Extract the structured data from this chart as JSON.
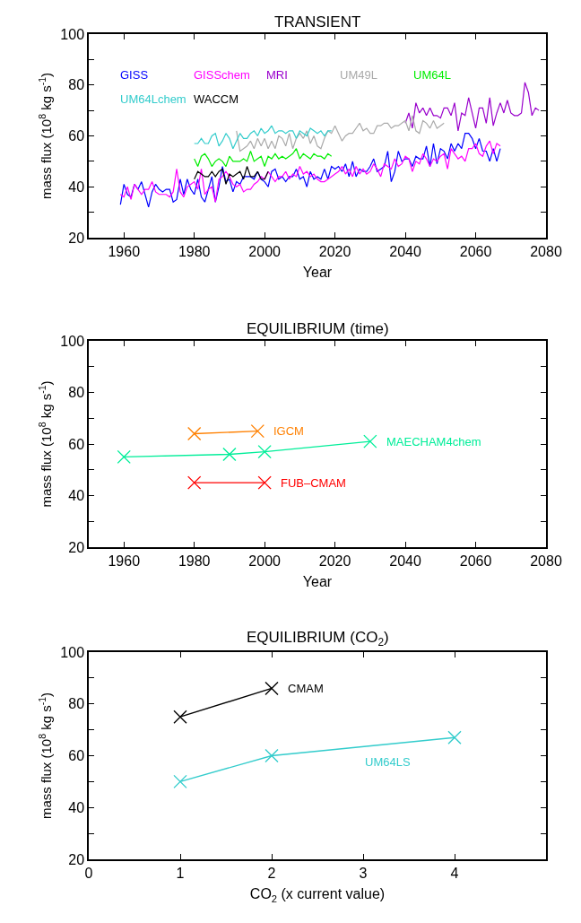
{
  "chart_data": [
    {
      "type": "line",
      "title": "TRANSIENT",
      "xlabel": "Year",
      "ylabel": "mass flux (10$^{8}$ kg s$^{-1}$)",
      "xlim": [
        1950,
        2080
      ],
      "xticks": [
        1960,
        1980,
        2000,
        2020,
        2040,
        2060,
        2080
      ],
      "ylim": [
        20,
        100
      ],
      "yticks": [
        20,
        {
          "value": 30,
          "label": null
        },
        40,
        {
          "value": 50,
          "label": null
        },
        60,
        {
          "value": 70,
          "label": null
        },
        80,
        {
          "value": 90,
          "label": null
        },
        100
      ],
      "grid": false,
      "legend": "top left",
      "marker": "none",
      "line_style": "solid",
      "series": [
        {
          "name": "GISS",
          "color": "#0000ff",
          "x": [
            1959,
            1960,
            1961,
            1962,
            1963,
            1964,
            1965,
            1966,
            1967,
            1968,
            1969,
            1970,
            1971,
            1972,
            1973,
            1974,
            1975,
            1976,
            1977,
            1978,
            1979,
            1980,
            1981,
            1982,
            1983,
            1984,
            1985,
            1986,
            1987,
            1988,
            1989,
            1990,
            1991,
            1992,
            1993,
            1994,
            1995,
            1996,
            1997,
            1998,
            1999,
            2000,
            2001,
            2002,
            2003,
            2004,
            2005,
            2006,
            2007,
            2008,
            2009,
            2010,
            2011,
            2012,
            2013,
            2014,
            2015,
            2016,
            2017,
            2018,
            2019,
            2020,
            2021,
            2022,
            2023,
            2024,
            2025,
            2026,
            2027,
            2028,
            2029,
            2030,
            2031,
            2032,
            2033,
            2034,
            2035,
            2036,
            2037,
            2038,
            2039,
            2040,
            2041,
            2042,
            2043,
            2044,
            2045,
            2046,
            2047,
            2048,
            2049,
            2050,
            2051,
            2052,
            2053,
            2054,
            2055,
            2056,
            2057,
            2058,
            2059,
            2060,
            2061,
            2062,
            2063,
            2064,
            2065,
            2066,
            2067
          ],
          "values": [
            33,
            41,
            37,
            36,
            41,
            39,
            42,
            37,
            32,
            38,
            41,
            39,
            38,
            39,
            39,
            34,
            35,
            43,
            37,
            43,
            39,
            37,
            43,
            36,
            34,
            39,
            44,
            34,
            40,
            48,
            42,
            43,
            38,
            42,
            41,
            44,
            44,
            44,
            43,
            46,
            43,
            42,
            40,
            46,
            47,
            43,
            44,
            42,
            44,
            44,
            47,
            43,
            44,
            40,
            46,
            43,
            44,
            43,
            47,
            43,
            48,
            47,
            48,
            46,
            49,
            44,
            50,
            44,
            47,
            46,
            46,
            48,
            51,
            46,
            47,
            48,
            54,
            42,
            46,
            54,
            50,
            51,
            51,
            48,
            52,
            51,
            51,
            56,
            48,
            57,
            49,
            55,
            54,
            51,
            57,
            54,
            57,
            55,
            61,
            61,
            59,
            55,
            59,
            54,
            54,
            50,
            55,
            50,
            55
          ]
        },
        {
          "name": "GISSchem",
          "color": "#ff00ff",
          "x": [
            1959,
            1960,
            1961,
            1962,
            1963,
            1964,
            1965,
            1966,
            1967,
            1968,
            1969,
            1970,
            1971,
            1972,
            1973,
            1974,
            1975,
            1976,
            1977,
            1978,
            1979,
            1980,
            1981,
            1982,
            1983,
            1984,
            1985,
            1986,
            1987,
            1988,
            1989,
            1990,
            1991,
            1992,
            1993,
            1994,
            1995,
            1996,
            1997,
            1998,
            1999,
            2000,
            2001,
            2002,
            2003,
            2004,
            2005,
            2006,
            2007,
            2008,
            2009,
            2010,
            2011,
            2012,
            2013,
            2014,
            2015,
            2016,
            2017,
            2018,
            2019,
            2020,
            2021,
            2022,
            2023,
            2024,
            2025,
            2026,
            2027,
            2028,
            2029,
            2030,
            2031,
            2032,
            2033,
            2034,
            2035,
            2036,
            2037,
            2038,
            2039,
            2040,
            2041,
            2042,
            2043,
            2044,
            2045,
            2046,
            2047,
            2048,
            2049,
            2050,
            2051,
            2052,
            2053,
            2054,
            2055,
            2056,
            2057,
            2058,
            2059,
            2060,
            2061,
            2062,
            2063,
            2064,
            2065,
            2066,
            2067
          ],
          "values": [
            37,
            36,
            40,
            35,
            41,
            39,
            37,
            39,
            39,
            42,
            38,
            37,
            37,
            37,
            36,
            38,
            47,
            38,
            36,
            40,
            41,
            42,
            39,
            47,
            37,
            39,
            40,
            34,
            43,
            44,
            46,
            44,
            41,
            40,
            41,
            38,
            39,
            39,
            41,
            42,
            44,
            43,
            46,
            44,
            42,
            44,
            44,
            46,
            43,
            45,
            44,
            48,
            45,
            46,
            44,
            45,
            43,
            42,
            42,
            43,
            44,
            45,
            46,
            48,
            45,
            47,
            44,
            48,
            45,
            47,
            45,
            46,
            49,
            47,
            44,
            49,
            48,
            47,
            51,
            48,
            49,
            52,
            51,
            46,
            50,
            49,
            53,
            51,
            48,
            51,
            50,
            52,
            53,
            47,
            55,
            53,
            51,
            52,
            50,
            55,
            55,
            57,
            53,
            52,
            56,
            58,
            53,
            57,
            56
          ]
        },
        {
          "name": "MRI",
          "color": "#9900cc",
          "x": [
            2040,
            2041,
            2042,
            2043,
            2044,
            2045,
            2046,
            2047,
            2048,
            2049,
            2050,
            2051,
            2052,
            2053,
            2054,
            2055,
            2056,
            2057,
            2058,
            2059,
            2060,
            2061,
            2062,
            2063,
            2064,
            2065,
            2066,
            2067,
            2068,
            2069,
            2070,
            2071,
            2072,
            2073,
            2074,
            2075,
            2076,
            2077,
            2078
          ],
          "values": [
            65,
            69,
            63,
            73,
            69,
            71,
            68,
            71,
            68,
            68,
            67,
            71,
            71,
            68,
            73,
            62,
            69,
            68,
            75,
            69,
            63,
            71,
            71,
            65,
            75,
            64,
            69,
            73,
            69,
            74,
            69,
            68,
            68,
            69,
            81,
            77,
            68,
            71,
            70
          ]
        },
        {
          "name": "UM49L",
          "color": "#aaaaaa",
          "x": [
            1992,
            1993,
            1994,
            1995,
            1996,
            1997,
            1998,
            1999,
            2000,
            2001,
            2002,
            2003,
            2004,
            2005,
            2006,
            2007,
            2008,
            2009,
            2010,
            2011,
            2012,
            2013,
            2014,
            2015,
            2016,
            2017,
            2018,
            2019,
            2020,
            2021,
            2022,
            2023,
            2024,
            2025,
            2026,
            2027,
            2028,
            2029,
            2030,
            2031,
            2032,
            2033,
            2034,
            2035,
            2036,
            2037,
            2038,
            2039,
            2040,
            2041,
            2042,
            2043,
            2044,
            2045,
            2046,
            2047,
            2048,
            2049,
            2050,
            2051
          ],
          "values": [
            62,
            54,
            55,
            56,
            58,
            55,
            59,
            56,
            59,
            55,
            58,
            55,
            60,
            59,
            56,
            61,
            55,
            59,
            61,
            59,
            62,
            57,
            60,
            56,
            55,
            59,
            62,
            61,
            64,
            61,
            58,
            60,
            61,
            61,
            63,
            65,
            62,
            63,
            61,
            61,
            64,
            64,
            65,
            65,
            63,
            64,
            64,
            65,
            66,
            62,
            68,
            62,
            61,
            66,
            65,
            63,
            66,
            63,
            64,
            65
          ]
        },
        {
          "name": "UM64L",
          "color": "#00ee00",
          "x": [
            1980,
            1981,
            1982,
            1983,
            1984,
            1985,
            1986,
            1987,
            1988,
            1989,
            1990,
            1991,
            1992,
            1993,
            1994,
            1995,
            1996,
            1997,
            1998,
            1999,
            2000,
            2001,
            2002,
            2003,
            2004,
            2005,
            2006,
            2007,
            2008,
            2009,
            2010,
            2011,
            2012,
            2013,
            2014,
            2015,
            2016,
            2017,
            2018,
            2019
          ],
          "values": [
            51,
            48,
            52,
            53,
            51,
            48,
            50,
            51,
            50,
            48,
            52,
            50,
            50,
            50,
            51,
            50,
            54,
            50,
            51,
            52,
            48,
            52,
            51,
            53,
            51,
            52,
            51,
            52,
            53,
            55,
            51,
            53,
            52,
            51,
            53,
            52,
            52,
            51,
            53,
            52
          ]
        },
        {
          "name": "UM64Lchem",
          "color": "#33cccc",
          "x": [
            1980,
            1981,
            1982,
            1983,
            1984,
            1985,
            1986,
            1987,
            1988,
            1989,
            1990,
            1991,
            1992,
            1993,
            1994,
            1995,
            1996,
            1997,
            1998,
            1999,
            2000,
            2001,
            2002,
            2003,
            2004,
            2005,
            2006,
            2007,
            2008,
            2009,
            2010,
            2011,
            2012,
            2013,
            2014,
            2015,
            2016,
            2017,
            2018,
            2019
          ],
          "values": [
            57,
            57,
            59,
            57,
            57,
            60,
            61,
            56,
            58,
            61,
            59,
            55,
            58,
            61,
            59,
            59,
            61,
            62,
            60,
            63,
            61,
            62,
            64,
            61,
            62,
            62,
            61,
            62,
            62,
            59,
            62,
            61,
            60,
            63,
            62,
            61,
            62,
            60,
            62,
            62
          ]
        },
        {
          "name": "WACCM",
          "color": "#000000",
          "x": [
            1980,
            1981,
            1982,
            1983,
            1984,
            1985,
            1986,
            1987,
            1988,
            1989,
            1990,
            1991,
            1992,
            1993,
            1994,
            1995,
            1996,
            1997,
            1998,
            1999,
            2000,
            2001
          ],
          "values": [
            43,
            46,
            45,
            44,
            44,
            46,
            44,
            46,
            47,
            41,
            45,
            44,
            45,
            46,
            43,
            48,
            44,
            44,
            46,
            43,
            43,
            46
          ]
        }
      ]
    },
    {
      "type": "line",
      "title": "EQUILIBRIUM (time)",
      "xlabel": "Year",
      "ylabel": "mass flux (10$^{8}$ kg s$^{-1}$)",
      "xlim": [
        1950,
        2080
      ],
      "xticks": [
        1960,
        1980,
        2000,
        2020,
        2040,
        2060,
        2080
      ],
      "ylim": [
        20,
        100
      ],
      "yticks": [
        20,
        {
          "value": 30,
          "label": null
        },
        40,
        {
          "value": 50,
          "label": null
        },
        60,
        {
          "value": 70,
          "label": null
        },
        80,
        {
          "value": 90,
          "label": null
        },
        100
      ],
      "grid": false,
      "legend": false,
      "marker": "cross",
      "line_style": "solid",
      "series": [
        {
          "name": "IGCM",
          "color": "#ff8000",
          "x": [
            1980,
            1998
          ],
          "values": [
            64,
            65
          ]
        },
        {
          "name": "MAECHAM4chem",
          "color": "#00ee99",
          "x": [
            1960,
            1990,
            2000,
            2030
          ],
          "values": [
            55,
            56,
            57,
            61
          ]
        },
        {
          "name": "FUB–CMAM",
          "color": "#ff0000",
          "x": [
            1980,
            2000
          ],
          "values": [
            45,
            45
          ]
        }
      ]
    },
    {
      "type": "line",
      "title": "EQUILIBRIUM (CO$_{2}$)",
      "xlabel": "CO$_{2}$ (x current value)",
      "ylabel": "mass flux (10$^{8}$ kg s$^{-1}$)",
      "xlim": [
        0,
        5
      ],
      "xticks": [
        0,
        1,
        2,
        3,
        4
      ],
      "ylim": [
        20,
        100
      ],
      "yticks": [
        20,
        {
          "value": 30,
          "label": null
        },
        40,
        {
          "value": 50,
          "label": null
        },
        60,
        {
          "value": 70,
          "label": null
        },
        80,
        {
          "value": 90,
          "label": null
        },
        100
      ],
      "grid": false,
      "legend": false,
      "marker": "cross",
      "line_style": "solid",
      "series": [
        {
          "name": "CMAM",
          "color": "#000000",
          "x": [
            1,
            2
          ],
          "values": [
            75,
            86
          ]
        },
        {
          "name": "UM64LS",
          "color": "#33cccc",
          "x": [
            1,
            2,
            4
          ],
          "values": [
            50,
            60,
            67
          ]
        }
      ]
    }
  ]
}
